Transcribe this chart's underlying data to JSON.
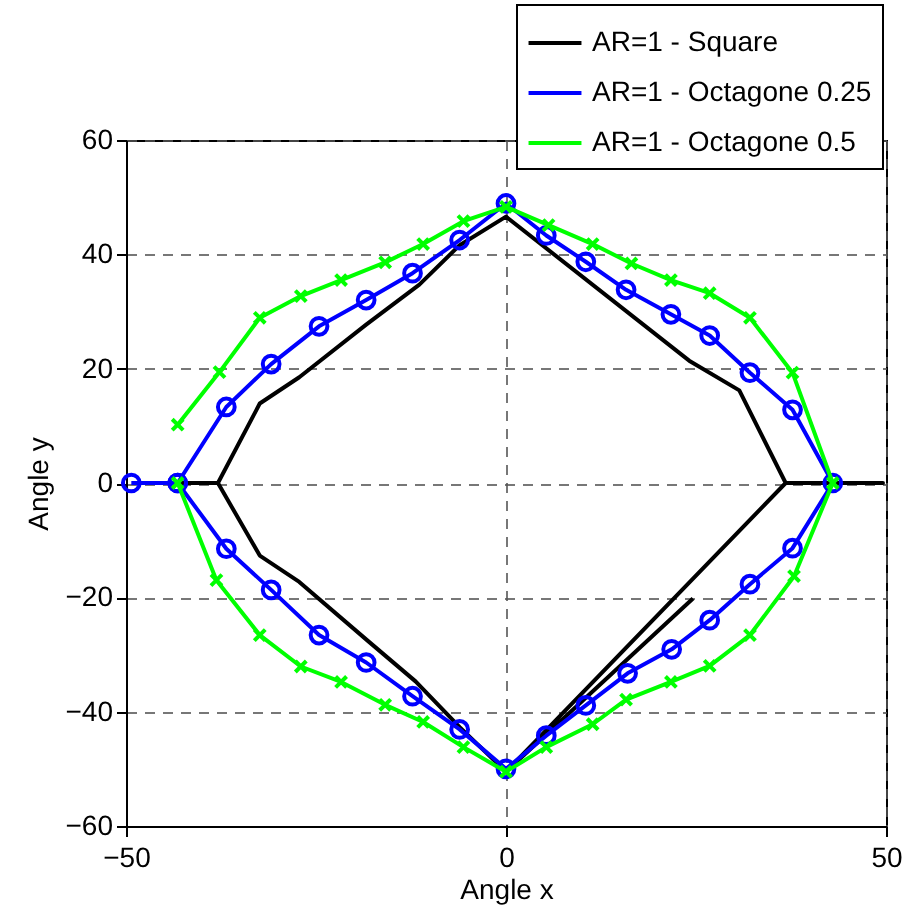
{
  "chart_data": {
    "type": "line",
    "xlabel": "Angle x",
    "ylabel": "Angle y",
    "xlim": [
      -50,
      50
    ],
    "xticks": [
      -50,
      0,
      50
    ],
    "ylim": [
      -60,
      60
    ],
    "yticks": [
      -60,
      -40,
      -20,
      0,
      20,
      40,
      60
    ],
    "grid": true,
    "legend": "top right",
    "line_style": "solid",
    "series": [
      {
        "name": "AR=1 - Square",
        "color": "#000000",
        "marker": "none",
        "x": [
          24.6,
          0,
          -6.1,
          -11.9,
          -18.1,
          -27.2,
          -32.4,
          -37.9,
          -43.2,
          -37.9,
          -32.4,
          -27.2,
          -18.4,
          -11.4,
          -6.1,
          0,
          24.1,
          30.7,
          36.8,
          49.6,
          36.8,
          0
        ],
        "values": [
          -20.2,
          -50.5,
          -42.7,
          -34.7,
          -27.7,
          -17.3,
          -12.7,
          0,
          0,
          0,
          13.9,
          18.5,
          27.7,
          34.7,
          41.6,
          46.6,
          21.4,
          16.2,
          0,
          0,
          0,
          -50.5
        ]
      },
      {
        "name": "AR=1 - Octagone 0.25",
        "color": "#0000ff",
        "marker": "circle",
        "x": [
          -49.3,
          -43.2,
          -36.8,
          -30.9,
          -24.6,
          -18.4,
          -12.3,
          -6.1,
          0,
          5.3,
          10.5,
          15.8,
          21.7,
          26.8,
          32.1,
          37.7,
          43.0,
          37.7,
          32.1,
          26.8,
          21.8,
          16.0,
          10.5,
          5.3,
          0,
          -6.1,
          -12.3,
          -18.4,
          -24.6,
          -30.9,
          -36.8,
          -43.2
        ],
        "values": [
          0,
          0,
          13.3,
          20.8,
          27.4,
          32.0,
          36.7,
          42.5,
          48.9,
          43.3,
          38.7,
          33.8,
          29.5,
          25.8,
          19.3,
          12.8,
          0,
          -11.4,
          -17.7,
          -24.0,
          -29.1,
          -33.3,
          -38.9,
          -44.2,
          -50.0,
          -43.1,
          -37.3,
          -31.4,
          -26.6,
          -18.7,
          -11.5,
          0
        ]
      },
      {
        "name": "AR=1 - Octagone 0.5",
        "color": "#00ff00",
        "marker": "cross",
        "x": [
          -43.2,
          -37.7,
          -32.4,
          -27.0,
          -21.7,
          -15.9,
          -10.9,
          -5.6,
          0,
          5.6,
          11.4,
          16.5,
          21.7,
          26.8,
          32.1,
          37.7,
          43.0,
          37.9,
          32.1,
          26.8,
          21.7,
          15.8,
          11.4,
          5.3,
          0,
          -5.6,
          -10.9,
          -15.9,
          -21.7,
          -27.0,
          -32.4,
          -38.1,
          -43.2
        ],
        "values": [
          10.2,
          19.4,
          28.9,
          32.7,
          35.5,
          38.6,
          41.8,
          45.8,
          48.3,
          45.1,
          41.8,
          38.4,
          35.5,
          33.2,
          28.9,
          19.3,
          0,
          -16.3,
          -26.6,
          -32.0,
          -34.8,
          -37.9,
          -42.2,
          -46.2,
          -50.5,
          -46.2,
          -41.8,
          -38.8,
          -34.8,
          -32.1,
          -26.6,
          -17.0,
          0
        ]
      }
    ]
  }
}
